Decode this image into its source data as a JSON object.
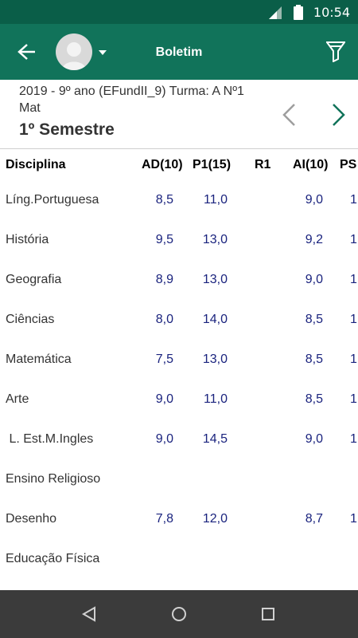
{
  "status_bar": {
    "time": "10:54"
  },
  "app_bar": {
    "title": "Boletim"
  },
  "header": {
    "line1": "2019 - 9º ano (EFundII_9) Turma: A Nº1",
    "line2": "Mat",
    "semester": "1º Semestre"
  },
  "table": {
    "columns": [
      "Disciplina",
      "AD(10)",
      "P1(15)",
      "R1",
      "AI(10)",
      "PS"
    ],
    "rows": [
      {
        "disciplina": "Líng.Portuguesa",
        "ad": "8,5",
        "p1": "11,0",
        "r1": "",
        "ai": "9,0",
        "ps": "1"
      },
      {
        "disciplina": "História",
        "ad": "9,5",
        "p1": "13,0",
        "r1": "",
        "ai": "9,2",
        "ps": "1"
      },
      {
        "disciplina": "Geografia",
        "ad": "8,9",
        "p1": "13,0",
        "r1": "",
        "ai": "9,0",
        "ps": "1"
      },
      {
        "disciplina": "Ciências",
        "ad": "8,0",
        "p1": "14,0",
        "r1": "",
        "ai": "8,5",
        "ps": "1"
      },
      {
        "disciplina": "Matemática",
        "ad": "7,5",
        "p1": "13,0",
        "r1": "",
        "ai": "8,5",
        "ps": "1"
      },
      {
        "disciplina": "Arte",
        "ad": "9,0",
        "p1": "11,0",
        "r1": "",
        "ai": "8,5",
        "ps": "1"
      },
      {
        "disciplina": " L. Est.M.Ingles",
        "ad": "9,0",
        "p1": "14,5",
        "r1": "",
        "ai": "9,0",
        "ps": "1"
      },
      {
        "disciplina": "Ensino Religioso",
        "ad": "",
        "p1": "",
        "r1": "",
        "ai": "",
        "ps": ""
      },
      {
        "disciplina": "Desenho",
        "ad": "7,8",
        "p1": "12,0",
        "r1": "",
        "ai": "8,7",
        "ps": "1"
      },
      {
        "disciplina": "Educação Física",
        "ad": "",
        "p1": "",
        "r1": "",
        "ai": "",
        "ps": ""
      }
    ]
  },
  "colors": {
    "status_bar": "#0a5e48",
    "app_bar": "#11735a",
    "grade_text": "#1a237e",
    "nav_bar": "#3b3b3b"
  }
}
